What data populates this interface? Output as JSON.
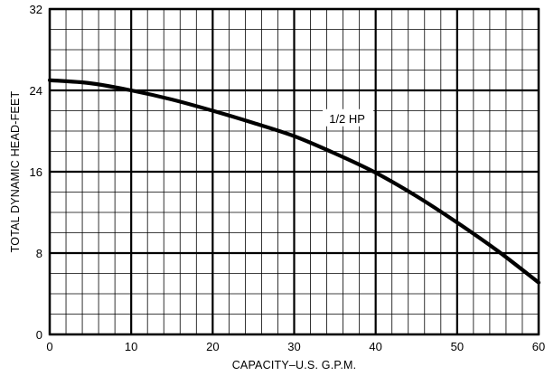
{
  "chart_data": {
    "type": "line",
    "title": "",
    "xlabel": "CAPACITY–U.S. G.P.M.",
    "ylabel": "TOTAL DYNAMIC HEAD-FEET",
    "xlim": [
      0,
      60
    ],
    "ylim": [
      0,
      32
    ],
    "x_ticks": [
      0,
      10,
      20,
      30,
      40,
      50,
      60
    ],
    "y_ticks": [
      0,
      8,
      16,
      24,
      32
    ],
    "x_tick_labels": [
      "0",
      "10",
      "20",
      "30",
      "40",
      "50",
      "60"
    ],
    "y_tick_labels": [
      "0",
      "8",
      "16",
      "24",
      "32"
    ],
    "grid": true,
    "minor_grid_x_step": 2,
    "minor_grid_y_step": 2,
    "series": [
      {
        "name": "1/2 HP",
        "color": "#000000",
        "x": [
          0,
          5,
          10,
          15,
          20,
          25,
          30,
          35,
          40,
          45,
          50,
          55,
          60
        ],
        "y": [
          25.0,
          24.7,
          24.0,
          23.1,
          22.0,
          20.8,
          19.5,
          17.8,
          15.9,
          13.6,
          11.0,
          8.2,
          5.1
        ]
      }
    ],
    "annotations": [
      {
        "text": "1/2 HP",
        "x": 36.5,
        "y": 21.0
      }
    ]
  }
}
